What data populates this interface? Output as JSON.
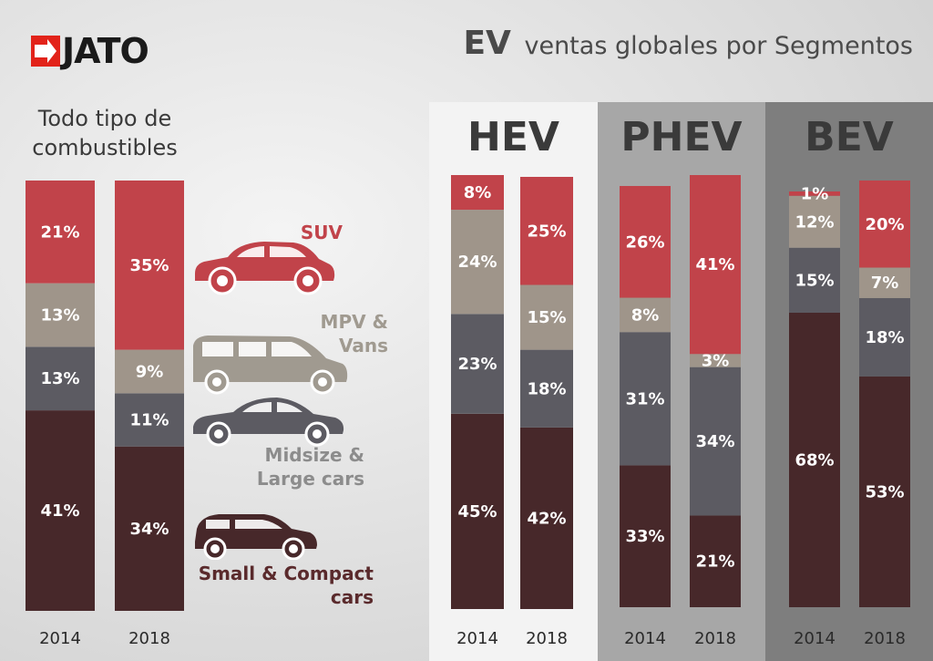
{
  "brand": {
    "logo_text": "JATO"
  },
  "title": {
    "prefix": "EV",
    "rest": "ventas globales por Segmentos"
  },
  "colors": {
    "SUV": "#c1434a",
    "MPV & Vans": "#9f958a",
    "Midsize & Large cars": "#5c5b62",
    "Small & Compact cars": "#47282a"
  },
  "legend": [
    {
      "label": "SUV",
      "color": "#c1434a"
    },
    {
      "label": "MPV & Vans",
      "color": "#a09a90"
    },
    {
      "label": "Midsize & Large cars",
      "color": "#8c8c8c"
    },
    {
      "label": "Small & Compact cars",
      "color": "#5a2a2c"
    }
  ],
  "chart_data": [
    {
      "type": "bar",
      "stacked": true,
      "title": "Todo tipo de combustibles",
      "categories": [
        "2014",
        "2018"
      ],
      "series": [
        {
          "name": "Small & Compact cars",
          "values": [
            41,
            34
          ]
        },
        {
          "name": "Midsize & Large cars",
          "values": [
            13,
            11
          ]
        },
        {
          "name": "MPV & Vans",
          "values": [
            13,
            9
          ]
        },
        {
          "name": "SUV",
          "values": [
            21,
            35
          ]
        }
      ]
    },
    {
      "type": "bar",
      "stacked": true,
      "title": "HEV",
      "categories": [
        "2014",
        "2018"
      ],
      "series": [
        {
          "name": "Small & Compact cars",
          "values": [
            45,
            42
          ]
        },
        {
          "name": "Midsize & Large cars",
          "values": [
            23,
            18
          ]
        },
        {
          "name": "MPV & Vans",
          "values": [
            24,
            15
          ]
        },
        {
          "name": "SUV",
          "values": [
            8,
            25
          ]
        }
      ]
    },
    {
      "type": "bar",
      "stacked": true,
      "title": "PHEV",
      "categories": [
        "2014",
        "2018"
      ],
      "series": [
        {
          "name": "Small & Compact cars",
          "values": [
            33,
            21
          ]
        },
        {
          "name": "Midsize & Large cars",
          "values": [
            31,
            34
          ]
        },
        {
          "name": "MPV & Vans",
          "values": [
            8,
            3
          ]
        },
        {
          "name": "SUV",
          "values": [
            26,
            41
          ]
        }
      ]
    },
    {
      "type": "bar",
      "stacked": true,
      "title": "BEV",
      "categories": [
        "2014",
        "2018"
      ],
      "series": [
        {
          "name": "Small & Compact cars",
          "values": [
            68,
            53
          ]
        },
        {
          "name": "Midsize & Large cars",
          "values": [
            15,
            18
          ]
        },
        {
          "name": "MPV & Vans",
          "values": [
            12,
            7
          ]
        },
        {
          "name": "SUV",
          "values": [
            1,
            20
          ]
        }
      ]
    }
  ]
}
